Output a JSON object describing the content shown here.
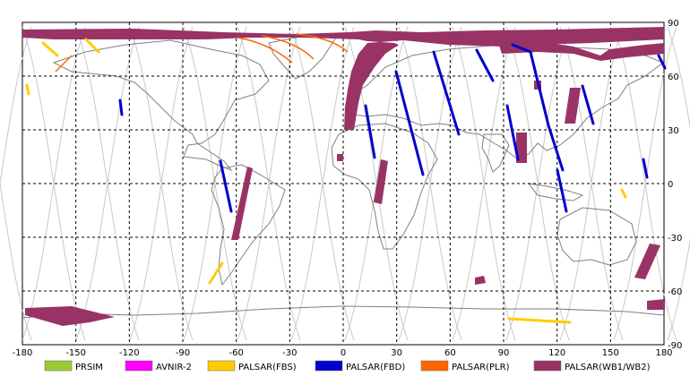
{
  "map": {
    "x_ticks": [
      "-180",
      "-150",
      "-120",
      "-90",
      "-60",
      "-30",
      "0",
      "30",
      "60",
      "90",
      "120",
      "150",
      "180"
    ],
    "y_ticks": [
      "90",
      "60",
      "30",
      "0",
      "-30",
      "-60",
      "-90"
    ],
    "x_range": [
      -180,
      180
    ],
    "y_range": [
      -90,
      90
    ],
    "grid": true,
    "colors": {
      "background": "#ffffff",
      "coast": "#808080",
      "orbit": "#c8c8c8",
      "grid": "#000000"
    }
  },
  "legend": {
    "items": [
      {
        "label": "PRSIM",
        "color": "#99cc33"
      },
      {
        "label": "AVNIR-2",
        "color": "#ff00ff"
      },
      {
        "label": "PALSAR(FBS)",
        "color": "#ffcc00"
      },
      {
        "label": "PALSAR(FBD)",
        "color": "#0000cc"
      },
      {
        "label": "PALSAR(PLR)",
        "color": "#ff6600"
      },
      {
        "label": "PALSAR(WB1/WB2)",
        "color": "#993366"
      }
    ]
  }
}
